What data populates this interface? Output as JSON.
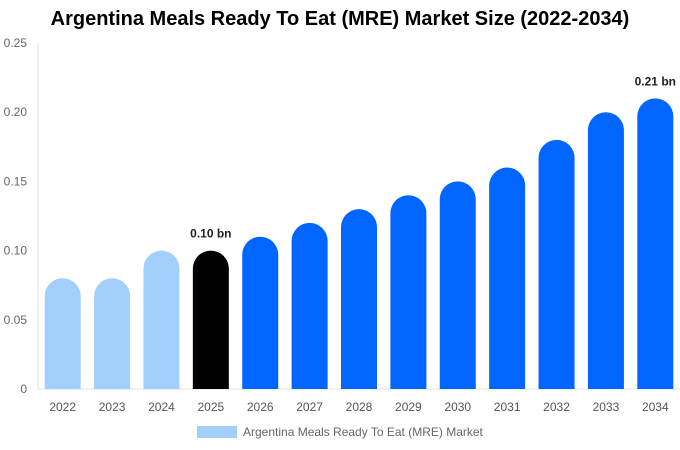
{
  "chart_data": {
    "type": "bar",
    "title": "Argentina Meals Ready To Eat (MRE) Market Size (2022-2034)",
    "categories": [
      "2022",
      "2023",
      "2024",
      "2025",
      "2026",
      "2027",
      "2028",
      "2029",
      "2030",
      "2031",
      "2032",
      "2033",
      "2034"
    ],
    "series": [
      {
        "name": "Argentina Meals Ready To Eat (MRE) Market",
        "values": [
          0.08,
          0.08,
          0.1,
          0.1,
          0.11,
          0.12,
          0.13,
          0.14,
          0.15,
          0.16,
          0.18,
          0.2,
          0.21
        ]
      }
    ],
    "bar_colors": [
      "#a3cffd",
      "#a3cffd",
      "#a3cffd",
      "#000000",
      "#0066ff",
      "#0066ff",
      "#0066ff",
      "#0066ff",
      "#0066ff",
      "#0066ff",
      "#0066ff",
      "#0066ff",
      "#0066ff"
    ],
    "data_labels": [
      {
        "category": "2025",
        "text": "0.10 bn"
      },
      {
        "category": "2034",
        "text": "0.21 bn"
      }
    ],
    "yticks": [
      "0",
      "0.05",
      "0.10",
      "0.15",
      "0.20",
      "0.25"
    ],
    "ylim": [
      0,
      0.25
    ],
    "grid": false,
    "legend_color": "#a3cffd",
    "legend_position": "bottom",
    "xlabel": "",
    "ylabel": ""
  }
}
